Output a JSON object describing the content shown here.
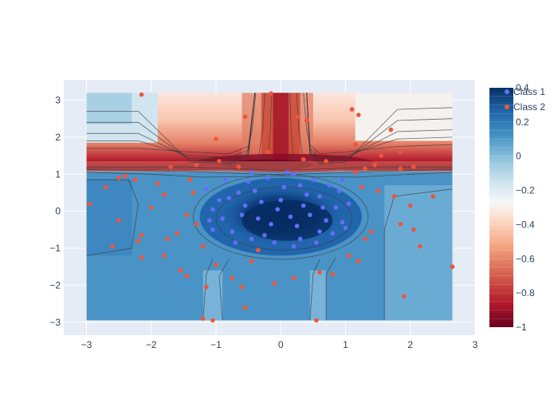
{
  "chart_data": {
    "type": "heatmap",
    "title": "",
    "xlabel": "",
    "ylabel": "",
    "xlim": [
      -3.35,
      3.0
    ],
    "ylim": [
      -3.35,
      3.55
    ],
    "x_ticks": [
      -3,
      -2,
      -1,
      0,
      1,
      2,
      3
    ],
    "y_ticks": [
      -3,
      -2,
      -1,
      0,
      1,
      2,
      3
    ],
    "x_tick_labels": [
      "−3",
      "−2",
      "−1",
      "0",
      "1",
      "2",
      "3"
    ],
    "y_tick_labels": [
      "−3",
      "−2",
      "−1",
      "0",
      "1",
      "2",
      "3"
    ],
    "grid": true,
    "heatmap": {
      "x_range": [
        -3.0,
        2.65
      ],
      "y_range": [
        -2.95,
        3.2
      ],
      "colorscale": "RdBu",
      "zmin": -1,
      "zmax": 0.4,
      "contours": true
    },
    "colorbar": {
      "ticks": [
        0.4,
        0.2,
        0,
        -0.2,
        -0.4,
        -0.6,
        -0.8,
        -1
      ],
      "tick_labels": [
        "0.4",
        "0.2",
        "0",
        "−0.2",
        "−0.4",
        "−0.6",
        "−0.8",
        "−1"
      ]
    },
    "legend": {
      "placement": "top-right",
      "entries": [
        "Class 1",
        "Class 2"
      ]
    },
    "series": [
      {
        "name": "Class 1",
        "color": "#636efa",
        "points": [
          [
            -0.95,
            0.3
          ],
          [
            -0.65,
            0.5
          ],
          [
            -0.5,
            0.8
          ],
          [
            -0.2,
            0.9
          ],
          [
            0.1,
            1.05
          ],
          [
            0.3,
            0.7
          ],
          [
            0.6,
            0.4
          ],
          [
            0.85,
            0.1
          ],
          [
            0.95,
            -0.3
          ],
          [
            0.8,
            -0.6
          ],
          [
            0.55,
            -0.85
          ],
          [
            0.2,
            -0.95
          ],
          [
            -0.1,
            -0.85
          ],
          [
            -0.45,
            -0.75
          ],
          [
            -0.75,
            -0.55
          ],
          [
            -0.9,
            -0.2
          ],
          [
            -1.05,
            0.05
          ],
          [
            -0.3,
            0.25
          ],
          [
            0.0,
            0.3
          ],
          [
            0.35,
            0.15
          ],
          [
            -0.15,
            -0.35
          ],
          [
            0.25,
            -0.4
          ],
          [
            0.45,
            -0.1
          ],
          [
            -0.6,
            -0.1
          ],
          [
            -1.15,
            0.6
          ],
          [
            -1.05,
            -0.5
          ],
          [
            -0.25,
            -0.65
          ],
          [
            0.05,
            0.65
          ],
          [
            0.5,
            0.85
          ],
          [
            0.75,
            0.7
          ],
          [
            0.9,
            0.55
          ],
          [
            1.05,
            0.2
          ],
          [
            1.0,
            -0.45
          ],
          [
            0.6,
            -0.55
          ],
          [
            -0.4,
            0.55
          ],
          [
            -0.85,
            0.85
          ],
          [
            -0.55,
            0.15
          ],
          [
            0.15,
            -0.15
          ],
          [
            -0.05,
            0.05
          ],
          [
            0.4,
            0.45
          ],
          [
            -0.7,
            -0.85
          ],
          [
            0.3,
            -0.75
          ],
          [
            0.7,
            -0.25
          ],
          [
            -0.35,
            -0.2
          ],
          [
            0.65,
            0.1
          ],
          [
            -0.8,
            0.35
          ],
          [
            0.2,
            1.0
          ],
          [
            -0.45,
            1.05
          ],
          [
            0.95,
            0.85
          ],
          [
            -1.1,
            -0.25
          ]
        ]
      },
      {
        "name": "Class 2",
        "color": "#ef553b",
        "points": [
          [
            -2.15,
            3.15
          ],
          [
            -0.15,
            3.18
          ],
          [
            0.25,
            2.55
          ],
          [
            0.4,
            2.45
          ],
          [
            1.1,
            2.75
          ],
          [
            1.2,
            2.6
          ],
          [
            1.7,
            2.2
          ],
          [
            -0.55,
            2.55
          ],
          [
            1.15,
            1.8
          ],
          [
            1.55,
            1.5
          ],
          [
            1.85,
            1.6
          ],
          [
            2.05,
            1.2
          ],
          [
            -1.0,
            1.95
          ],
          [
            -1.7,
            1.2
          ],
          [
            -1.3,
            1.25
          ],
          [
            -0.95,
            1.35
          ],
          [
            -0.2,
            1.6
          ],
          [
            0.35,
            1.4
          ],
          [
            0.7,
            1.35
          ],
          [
            1.3,
            1.15
          ],
          [
            1.85,
            1.15
          ],
          [
            -2.5,
            0.9
          ],
          [
            -2.4,
            0.95
          ],
          [
            -2.7,
            0.65
          ],
          [
            -2.25,
            0.85
          ],
          [
            -1.9,
            0.75
          ],
          [
            -1.8,
            0.45
          ],
          [
            -2.0,
            0.1
          ],
          [
            -2.95,
            0.2
          ],
          [
            -1.35,
            0.5
          ],
          [
            -1.45,
            -0.1
          ],
          [
            -1.6,
            -0.6
          ],
          [
            -1.75,
            -0.75
          ],
          [
            -2.15,
            -0.65
          ],
          [
            -2.5,
            -0.25
          ],
          [
            -1.2,
            -0.95
          ],
          [
            -1.0,
            -1.45
          ],
          [
            -0.35,
            -1.05
          ],
          [
            1.25,
            0.65
          ],
          [
            1.5,
            0.55
          ],
          [
            1.75,
            0.4
          ],
          [
            2.0,
            0.15
          ],
          [
            2.35,
            0.4
          ],
          [
            1.85,
            -0.35
          ],
          [
            2.05,
            -0.5
          ],
          [
            2.15,
            -0.95
          ],
          [
            1.3,
            -0.75
          ],
          [
            1.4,
            -0.55
          ],
          [
            1.05,
            -1.2
          ],
          [
            0.6,
            -1.65
          ],
          [
            0.8,
            -1.7
          ],
          [
            1.2,
            -1.35
          ],
          [
            0.2,
            -1.8
          ],
          [
            -0.1,
            -1.95
          ],
          [
            -0.6,
            -2.05
          ],
          [
            -1.15,
            -2.05
          ],
          [
            -1.45,
            -1.75
          ],
          [
            -1.55,
            -1.6
          ],
          [
            -1.8,
            -1.2
          ],
          [
            -2.2,
            -0.8
          ],
          [
            -2.6,
            -0.95
          ],
          [
            -0.55,
            -2.6
          ],
          [
            -0.45,
            -1.35
          ],
          [
            -1.2,
            -2.9
          ],
          [
            -1.05,
            -2.95
          ],
          [
            0.55,
            -2.95
          ],
          [
            -0.75,
            -1.8
          ],
          [
            2.65,
            -1.5
          ],
          [
            1.9,
            -2.3
          ],
          [
            1.15,
            1.05
          ],
          [
            -0.65,
            1.2
          ],
          [
            -1.4,
            0.85
          ],
          [
            -1.3,
            -0.35
          ],
          [
            1.45,
            1.25
          ],
          [
            -2.15,
            -1.25
          ]
        ]
      }
    ]
  }
}
